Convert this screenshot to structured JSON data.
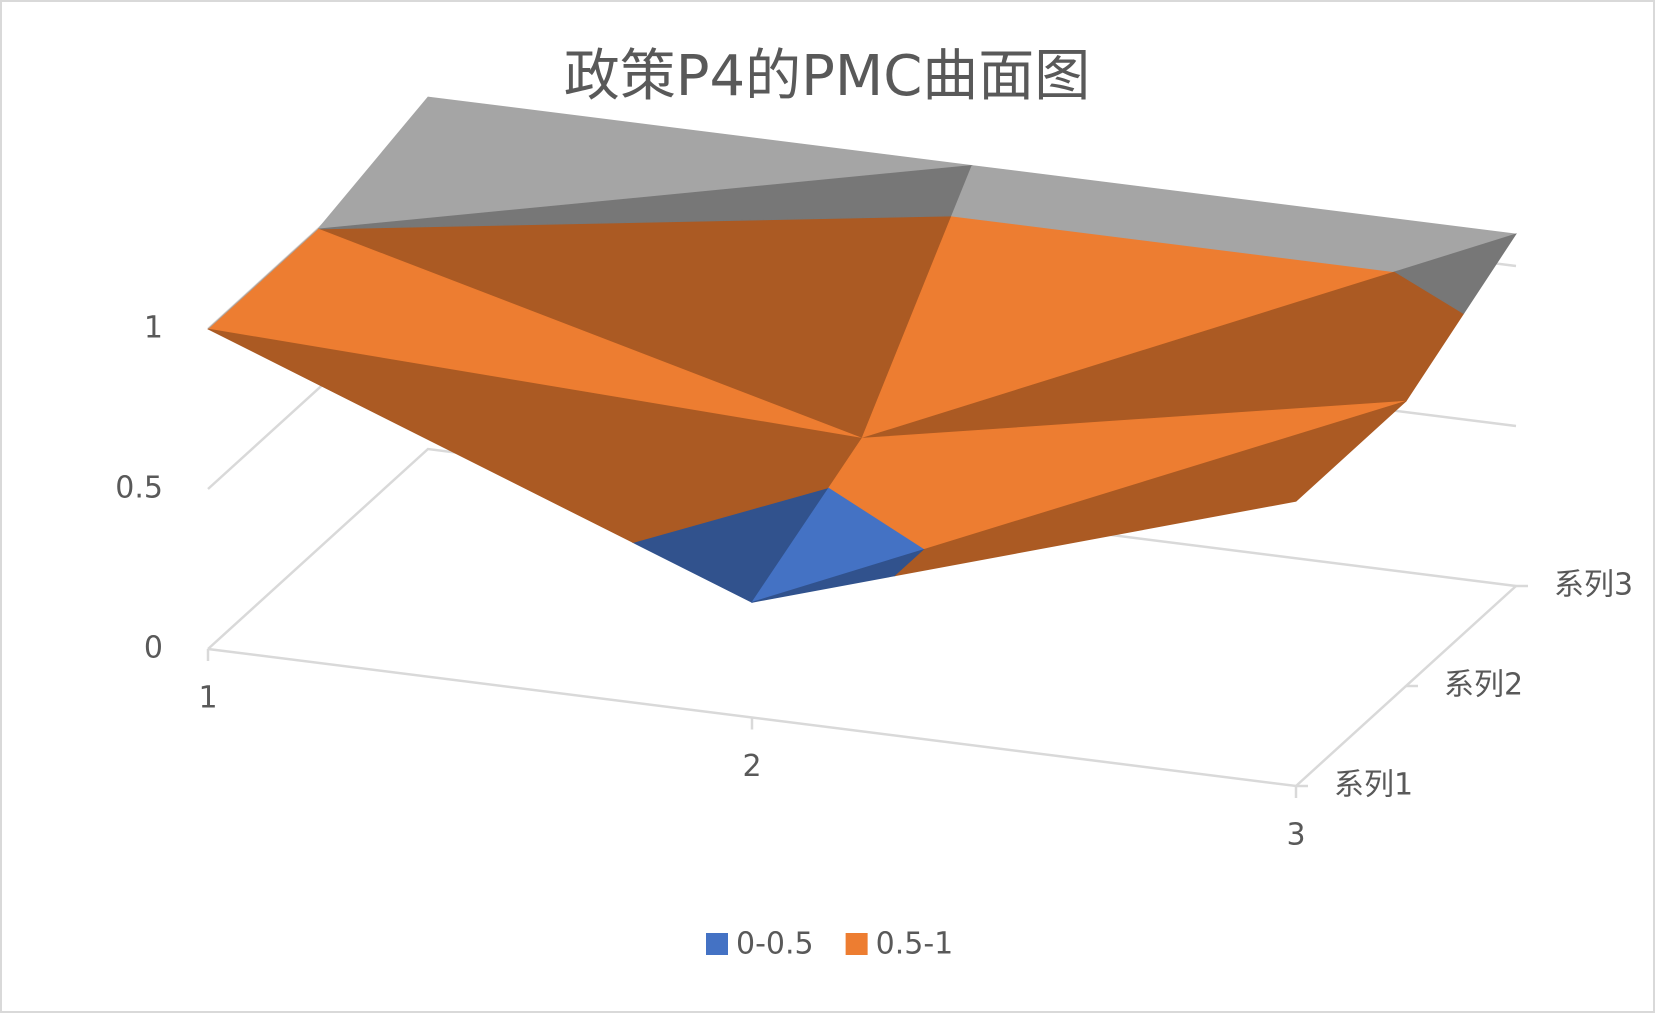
{
  "chart_data": {
    "type": "surface",
    "title": "政策P4的PMC曲面图",
    "categories": [
      "1",
      "2",
      "3"
    ],
    "series": [
      {
        "name": "系列1",
        "values": [
          1,
          0.36,
          0.89
        ]
      },
      {
        "name": "系列2",
        "values": [
          1,
          0.56,
          0.89
        ]
      },
      {
        "name": "系列3",
        "values": [
          1.1,
          1.1,
          1.1
        ]
      }
    ],
    "bands": [
      {
        "name": "0-0.5",
        "color": "#4472c4"
      },
      {
        "name": "0.5-1",
        "color": "#ed7d31"
      }
    ],
    "top_band_color": "#a5a5a5",
    "zlim": [
      0,
      1.2
    ],
    "zticks": [
      0,
      0.5,
      1
    ],
    "grid": true
  }
}
